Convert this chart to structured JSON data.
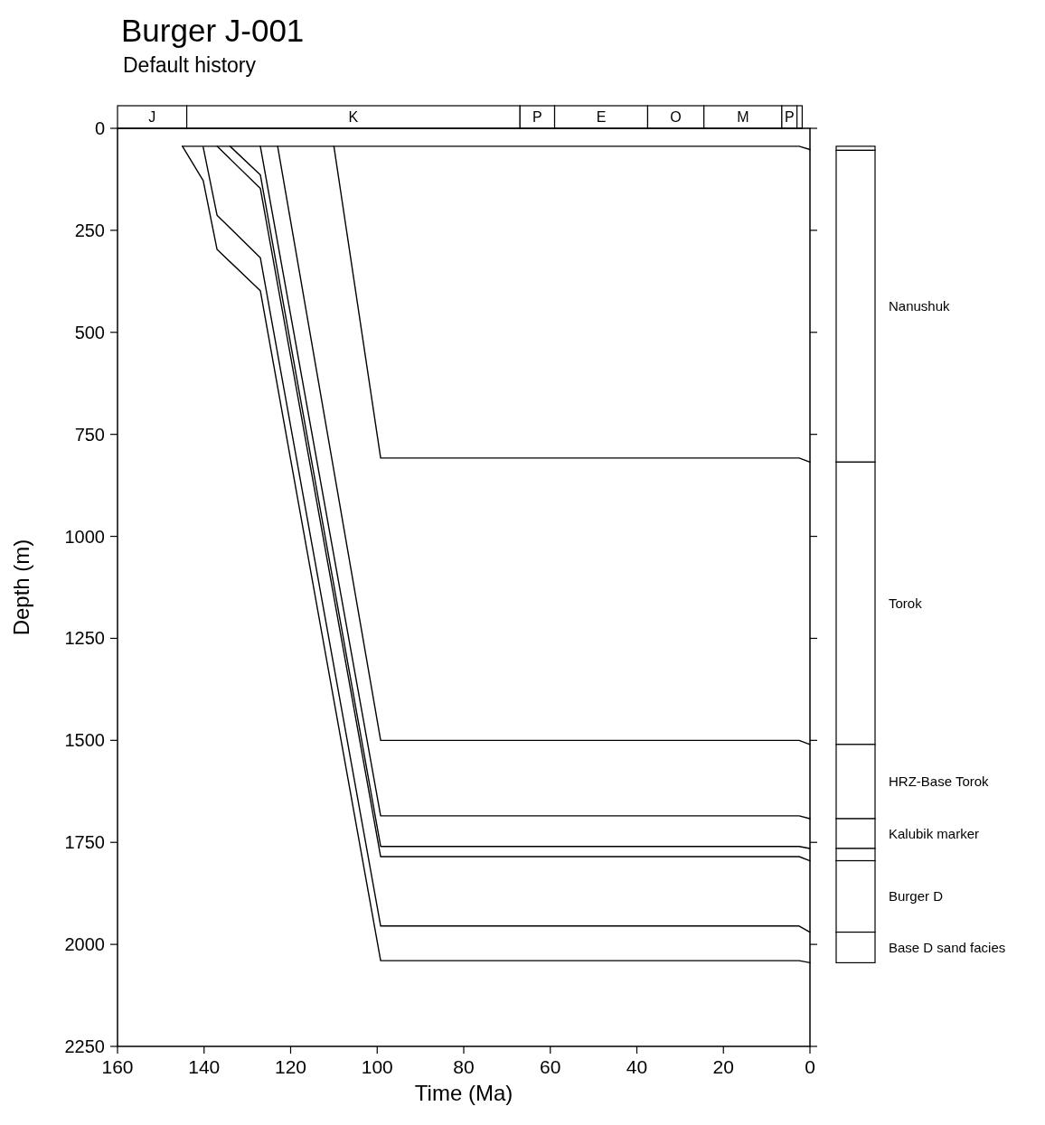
{
  "chart_data": {
    "type": "line",
    "title": "Burger J-001",
    "subtitle": "Default history",
    "xlabel": "Time (Ma)",
    "ylabel": "Depth (m)",
    "xlim": [
      160,
      0
    ],
    "xticks": [
      160,
      140,
      120,
      100,
      80,
      60,
      40,
      20,
      0
    ],
    "ylim": [
      2250,
      0
    ],
    "yticks": [
      0,
      250,
      500,
      750,
      1000,
      1250,
      1500,
      1750,
      2000,
      2250
    ],
    "marker": "none",
    "line_style": "solid",
    "annotations": [
      "J",
      "K",
      "P",
      "E",
      "O",
      "M",
      "P",
      "Nanushuk",
      "Torok",
      "HRZ-Base Torok",
      "Kalubik marker",
      "Burger  D",
      "Base D sand facies"
    ],
    "series": [
      {
        "color": "#000000",
        "x": [
          145,
          2.5,
          0
        ],
        "values": [
          44,
          44,
          52
        ]
      },
      {
        "color": "#000000",
        "x": [
          110,
          99.2,
          2.5,
          0
        ],
        "values": [
          44,
          808,
          808,
          818
        ]
      },
      {
        "color": "#000000",
        "x": [
          123,
          99.2,
          2.5,
          0
        ],
        "values": [
          44,
          1500,
          1500,
          1510
        ]
      },
      {
        "color": "#000000",
        "x": [
          127,
          99.2,
          2.5,
          0
        ],
        "values": [
          44,
          1685,
          1685,
          1692
        ]
      },
      {
        "color": "#000000",
        "x": [
          134,
          127,
          99.2,
          2.5,
          0
        ],
        "values": [
          44,
          114,
          1760,
          1760,
          1765
        ]
      },
      {
        "color": "#000000",
        "x": [
          137,
          127,
          99.2,
          2.5,
          0
        ],
        "values": [
          44,
          147,
          1785,
          1785,
          1795
        ]
      },
      {
        "color": "#000000",
        "x": [
          140.2,
          137,
          127,
          99.2,
          2.5,
          0
        ],
        "values": [
          46,
          213,
          317,
          1955,
          1955,
          1970
        ]
      },
      {
        "color": "#000000",
        "x": [
          145,
          140.2,
          137,
          127,
          99.2,
          2.5,
          0
        ],
        "values": [
          44,
          128,
          297,
          398,
          2040,
          2040,
          2045
        ]
      }
    ]
  }
}
